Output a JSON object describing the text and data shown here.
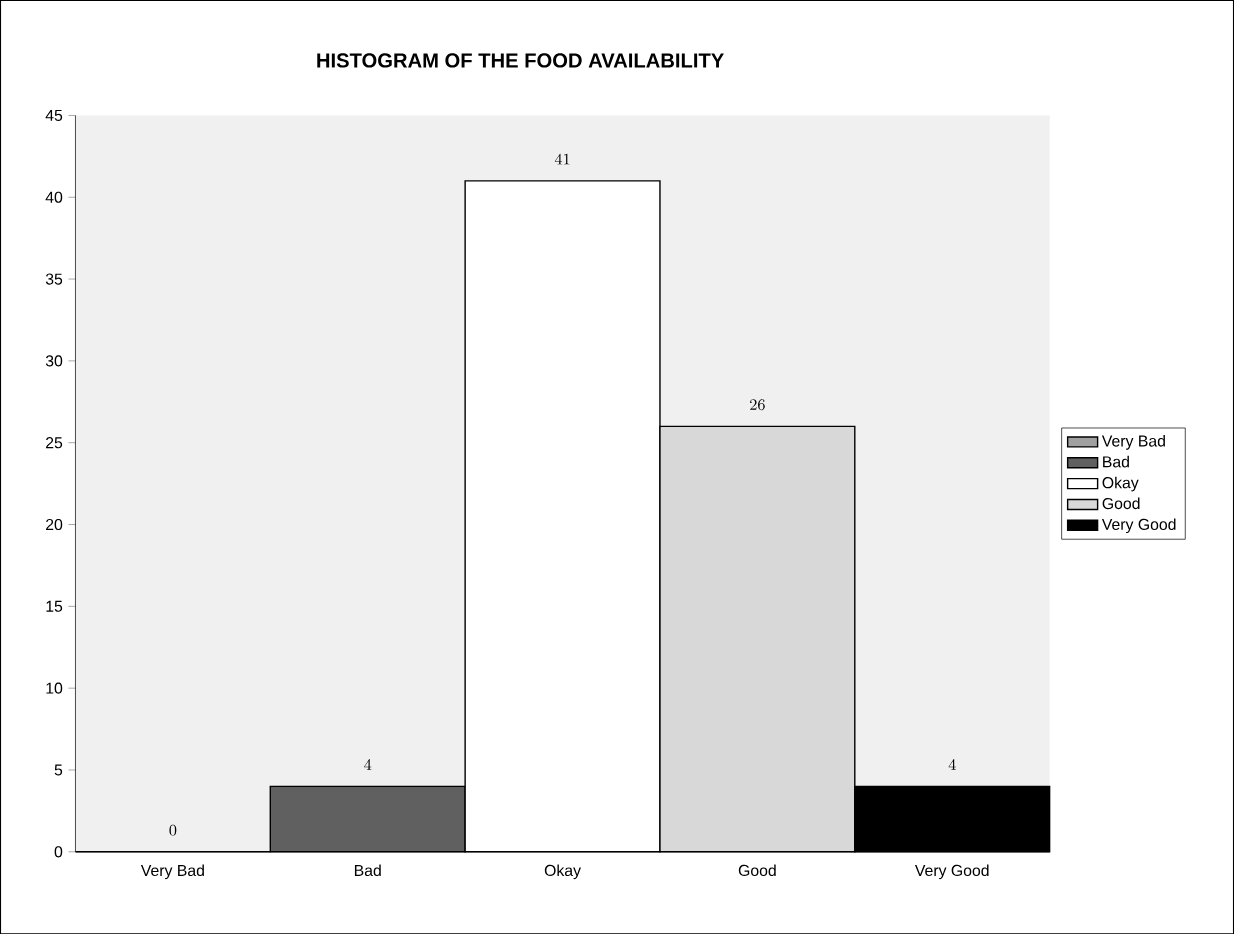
{
  "chart_data": {
    "type": "bar",
    "title": "HISTOGRAM OF THE FOOD AVAILABILITY",
    "categories": [
      "Very Bad",
      "Bad",
      "Okay",
      "Good",
      "Very Good"
    ],
    "series": [
      {
        "name": "Very Bad",
        "color": "#a0a0a0",
        "values": [
          0,
          null,
          null,
          null,
          null
        ]
      },
      {
        "name": "Bad",
        "color": "#606060",
        "values": [
          null,
          4,
          null,
          null,
          null
        ]
      },
      {
        "name": "Okay",
        "color": "#ffffff",
        "values": [
          null,
          null,
          41,
          null,
          null
        ]
      },
      {
        "name": "Good",
        "color": "#d8d8d8",
        "values": [
          null,
          null,
          null,
          26,
          null
        ]
      },
      {
        "name": "Very Good",
        "color": "#000000",
        "values": [
          null,
          null,
          null,
          null,
          4
        ]
      }
    ],
    "ylim": [
      0,
      45
    ],
    "yticks": [
      0,
      5,
      10,
      15,
      20,
      25,
      30,
      35,
      40,
      45
    ],
    "data_labels": true,
    "legend": "right",
    "grid": false
  }
}
